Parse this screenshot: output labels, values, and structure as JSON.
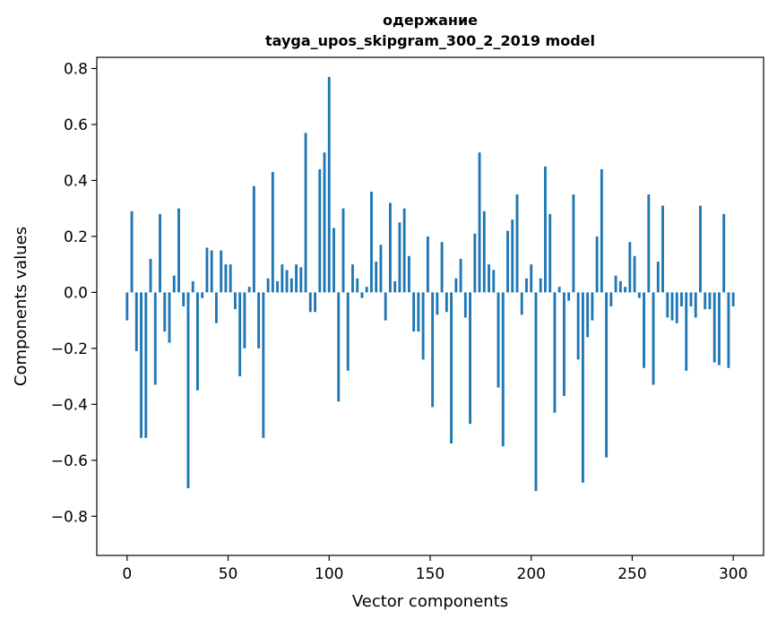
{
  "chart_data": {
    "type": "bar",
    "title": "одержание",
    "subtitle": "tayga_upos_skipgram_300_2_2019 model",
    "xlabel": "Vector components",
    "ylabel": "Components values",
    "xlim": [
      -15,
      315
    ],
    "ylim": [
      -0.94,
      0.84
    ],
    "xticks": [
      0,
      50,
      100,
      150,
      200,
      250,
      300
    ],
    "xtick_labels": [
      "0",
      "50",
      "100",
      "150",
      "200",
      "250",
      "300"
    ],
    "yticks": [
      -0.8,
      -0.6,
      -0.4,
      -0.2,
      0.0,
      0.2,
      0.4,
      0.6,
      0.8
    ],
    "ytick_labels": [
      "−0.8",
      "−0.6",
      "−0.4",
      "−0.2",
      "0.0",
      "0.2",
      "0.4",
      "0.6",
      "0.8"
    ],
    "grid": false,
    "color": "#1f77b4",
    "values": [
      -0.1,
      0.29,
      -0.21,
      -0.52,
      -0.52,
      0.12,
      -0.33,
      0.28,
      -0.14,
      -0.18,
      0.06,
      0.3,
      -0.05,
      -0.7,
      0.04,
      -0.35,
      -0.02,
      0.16,
      0.15,
      -0.11,
      0.15,
      0.1,
      0.1,
      -0.06,
      -0.3,
      -0.2,
      0.02,
      0.38,
      -0.2,
      -0.52,
      0.05,
      0.43,
      0.04,
      0.1,
      0.08,
      0.05,
      0.1,
      0.09,
      0.57,
      -0.07,
      -0.07,
      0.44,
      0.5,
      0.77,
      0.23,
      -0.39,
      0.3,
      -0.28,
      0.1,
      0.05,
      -0.02,
      0.02,
      0.36,
      0.11,
      0.17,
      -0.1,
      0.32,
      0.04,
      0.25,
      0.3,
      0.13,
      -0.14,
      -0.14,
      -0.24,
      0.2,
      -0.41,
      -0.08,
      0.18,
      -0.07,
      -0.54,
      0.05,
      0.12,
      -0.09,
      -0.47,
      0.21,
      0.5,
      0.29,
      0.1,
      0.08,
      -0.34,
      -0.55,
      0.22,
      0.26,
      0.35,
      -0.08,
      0.05,
      0.1,
      -0.71,
      0.05,
      0.45,
      0.28,
      -0.43,
      0.02,
      -0.37,
      -0.03,
      0.35,
      -0.24,
      -0.68,
      -0.16,
      -0.1,
      0.2,
      0.44,
      -0.59,
      -0.05,
      0.06,
      0.04,
      0.02,
      0.18,
      0.13,
      -0.02,
      -0.27,
      0.35,
      -0.33,
      0.11,
      0.31,
      -0.09,
      -0.1,
      -0.11,
      -0.05,
      -0.28,
      -0.05,
      -0.09,
      0.31,
      -0.06,
      -0.06,
      -0.25,
      -0.26,
      0.28,
      -0.27,
      -0.05
    ]
  }
}
